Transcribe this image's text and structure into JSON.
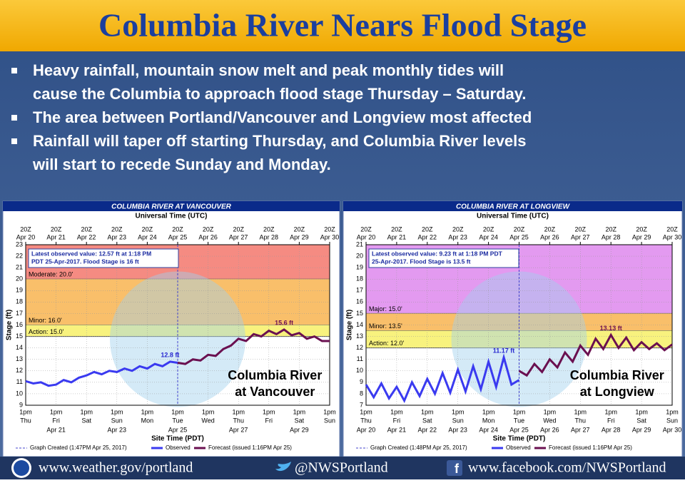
{
  "title": "Columbia River Nears Flood Stage",
  "bullets": [
    [
      "Heavy rainfall, mountain snow melt and peak monthly tides will",
      "cause the Columbia to approach flood stage Thursday – Saturday."
    ],
    [
      "The area between Portland/Vancouver and Longview most affected"
    ],
    [
      "Rainfall will taper off starting Thursday, and Columbia River levels",
      "will start to recede Sunday and Monday."
    ]
  ],
  "footer": [
    "www.weather.gov/portland",
    "@NWSPortland",
    "www.facebook.com/NWSPortland"
  ],
  "chart_data": [
    {
      "type": "line",
      "title": "COLUMBIA RIVER AT VANCOUVER",
      "top_axis_label": "Universal Time (UTC)",
      "xlabel": "Site Time (PDT)",
      "ylabel": "Stage (ft)",
      "overlay": [
        "Columbia River",
        "at Vancouver"
      ],
      "annotation": [
        "Latest observed value: 12.57 ft at 1:18 PM",
        "PDT 25-Apr-2017.  Flood Stage is 16 ft"
      ],
      "created": "Graph Created (1:47PM Apr 25, 2017)",
      "ylim": [
        9,
        23
      ],
      "yticks": [
        9,
        10,
        11,
        12,
        13,
        14,
        15,
        16,
        17,
        18,
        19,
        20,
        21,
        22,
        23
      ],
      "xlim": [
        0,
        10
      ],
      "xticks": [
        {
          "value": 0,
          "label": "1pm",
          "day": "Thu"
        },
        {
          "value": 1,
          "label": "1pm",
          "day": "Fri",
          "date": "Apr 21"
        },
        {
          "value": 2,
          "label": "1pm",
          "day": "Sat"
        },
        {
          "value": 3,
          "label": "1pm",
          "day": "Sun",
          "date": "Apr 23"
        },
        {
          "value": 4,
          "label": "1pm",
          "day": "Mon"
        },
        {
          "value": 5,
          "label": "1pm",
          "day": "Tue",
          "date": "Apr 25"
        },
        {
          "value": 6,
          "label": "1pm",
          "day": "Wed"
        },
        {
          "value": 7,
          "label": "1pm",
          "day": "Thu",
          "date": "Apr 27"
        },
        {
          "value": 8,
          "label": "1pm",
          "day": "Fri"
        },
        {
          "value": 9,
          "label": "1pm",
          "day": "Sat",
          "date": "Apr 29"
        },
        {
          "value": 10,
          "label": "1pm",
          "day": "Sun"
        }
      ],
      "top_ticks": [
        {
          "value": 0,
          "label": "20Z",
          "date": "Apr 20"
        },
        {
          "value": 1,
          "label": "20Z",
          "date": "Apr 21"
        },
        {
          "value": 2,
          "label": "20Z",
          "date": "Apr 22"
        },
        {
          "value": 3,
          "label": "20Z",
          "date": "Apr 23"
        },
        {
          "value": 4,
          "label": "20Z",
          "date": "Apr 24"
        },
        {
          "value": 5,
          "label": "20Z",
          "date": "Apr 25"
        },
        {
          "value": 6,
          "label": "20Z",
          "date": "Apr 26"
        },
        {
          "value": 7,
          "label": "20Z",
          "date": "Apr 27"
        },
        {
          "value": 8,
          "label": "20Z",
          "date": "Apr 28"
        },
        {
          "value": 9,
          "label": "20Z",
          "date": "Apr 29"
        },
        {
          "value": 10,
          "label": "20Z",
          "date": "Apr 30"
        }
      ],
      "thresholds": [
        {
          "label": "Moderate: 20.0'",
          "value": 20,
          "color": "#f58b82"
        },
        {
          "label": "Minor: 16.0'",
          "value": 16,
          "color": "#f9bf6a"
        },
        {
          "label": "Action: 15.0'",
          "value": 15,
          "color": "#f8f27e"
        }
      ],
      "series": [
        {
          "name": "Observed",
          "color": "#3a3af0",
          "x": [
            0,
            0.25,
            0.5,
            0.75,
            1,
            1.25,
            1.5,
            1.75,
            2,
            2.25,
            2.5,
            2.75,
            3,
            3.25,
            3.5,
            3.75,
            4,
            4.25,
            4.5,
            4.75,
            5
          ],
          "values": [
            11.1,
            10.9,
            11.0,
            10.7,
            10.8,
            11.2,
            11.0,
            11.4,
            11.6,
            11.9,
            11.7,
            12.0,
            11.9,
            12.2,
            12.0,
            12.4,
            12.2,
            12.6,
            12.4,
            12.8,
            12.7
          ],
          "value_labels": [
            null,
            null,
            null,
            null,
            null,
            null,
            null,
            null,
            null,
            null,
            null,
            null,
            null,
            null,
            null,
            null,
            null,
            null,
            null,
            "12.8 ft",
            null
          ]
        },
        {
          "name": "Forecast (issued 1:16PM Apr 25)",
          "color": "#6a1050",
          "x": [
            5,
            5.25,
            5.5,
            5.75,
            6,
            6.25,
            6.5,
            6.75,
            7,
            7.25,
            7.5,
            7.75,
            8,
            8.25,
            8.5,
            8.75,
            9,
            9.25,
            9.5,
            9.75,
            10
          ],
          "values": [
            12.7,
            12.6,
            13.0,
            12.9,
            13.4,
            13.3,
            13.9,
            14.2,
            14.8,
            14.6,
            15.2,
            15.0,
            15.5,
            15.2,
            15.6,
            15.1,
            15.3,
            14.8,
            15.0,
            14.6,
            14.6
          ],
          "value_labels": [
            null,
            null,
            null,
            null,
            null,
            null,
            null,
            null,
            null,
            null,
            null,
            null,
            null,
            null,
            "15.6 ft",
            null,
            null,
            null,
            null,
            null,
            null
          ]
        }
      ]
    },
    {
      "type": "line",
      "title": "COLUMBIA RIVER AT LONGVIEW",
      "top_axis_label": "Universal Time (UTC)",
      "xlabel": "Site Time (PDT)",
      "ylabel": "Stage (ft)",
      "overlay": [
        "Columbia River",
        "at Longview"
      ],
      "annotation": [
        "Latest observed value: 9.23 ft at 1:18 PM PDT",
        "25-Apr-2017.  Flood Stage is 13.5 ft"
      ],
      "created": "Graph Created (1:48PM Apr 25, 2017)",
      "ylim": [
        7,
        21
      ],
      "yticks": [
        7,
        8,
        9,
        10,
        11,
        12,
        13,
        14,
        15,
        16,
        17,
        18,
        19,
        20,
        21
      ],
      "xlim": [
        0,
        10
      ],
      "xticks": [
        {
          "value": 0,
          "label": "1pm",
          "day": "Thu",
          "date": "Apr 20"
        },
        {
          "value": 1,
          "label": "1pm",
          "day": "Fri",
          "date": "Apr 21"
        },
        {
          "value": 2,
          "label": "1pm",
          "day": "Sat",
          "date": "Apr 22"
        },
        {
          "value": 3,
          "label": "1pm",
          "day": "Sun",
          "date": "Apr 23"
        },
        {
          "value": 4,
          "label": "1pm",
          "day": "Mon",
          "date": "Apr 24"
        },
        {
          "value": 5,
          "label": "1pm",
          "day": "Tue",
          "date": "Apr 25"
        },
        {
          "value": 6,
          "label": "1pm",
          "day": "Wed",
          "date": "Apr 26"
        },
        {
          "value": 7,
          "label": "1pm",
          "day": "Thu",
          "date": "Apr 27"
        },
        {
          "value": 8,
          "label": "1pm",
          "day": "Fri",
          "date": "Apr 28"
        },
        {
          "value": 9,
          "label": "1pm",
          "day": "Sat",
          "date": "Apr 29"
        },
        {
          "value": 10,
          "label": "1pm",
          "day": "Sun",
          "date": "Apr 30"
        }
      ],
      "top_ticks": [
        {
          "value": 0,
          "label": "20Z",
          "date": "Apr 20"
        },
        {
          "value": 1,
          "label": "20Z",
          "date": "Apr 21"
        },
        {
          "value": 2,
          "label": "20Z",
          "date": "Apr 22"
        },
        {
          "value": 3,
          "label": "20Z",
          "date": "Apr 23"
        },
        {
          "value": 4,
          "label": "20Z",
          "date": "Apr 24"
        },
        {
          "value": 5,
          "label": "20Z",
          "date": "Apr 25"
        },
        {
          "value": 6,
          "label": "20Z",
          "date": "Apr 26"
        },
        {
          "value": 7,
          "label": "20Z",
          "date": "Apr 27"
        },
        {
          "value": 8,
          "label": "20Z",
          "date": "Apr 28"
        },
        {
          "value": 9,
          "label": "20Z",
          "date": "Apr 29"
        },
        {
          "value": 10,
          "label": "20Z",
          "date": "Apr 30"
        }
      ],
      "thresholds": [
        {
          "label": "Major: 15.0'",
          "value": 15,
          "color": "#e39af0"
        },
        {
          "label": "Minor: 13.5'",
          "value": 13.5,
          "color": "#f9bf6a"
        },
        {
          "label": "Action: 12.0'",
          "value": 12,
          "color": "#f8f27e"
        }
      ],
      "series": [
        {
          "name": "Observed",
          "color": "#3a3af0",
          "x": [
            0,
            0.25,
            0.5,
            0.75,
            1,
            1.25,
            1.5,
            1.75,
            2,
            2.25,
            2.5,
            2.75,
            3,
            3.25,
            3.5,
            3.75,
            4,
            4.25,
            4.5,
            4.75,
            5
          ],
          "values": [
            8.8,
            7.7,
            8.9,
            7.6,
            8.6,
            7.4,
            9.0,
            7.8,
            9.3,
            8.0,
            9.8,
            8.1,
            10.1,
            8.2,
            10.4,
            8.4,
            10.8,
            8.6,
            11.17,
            8.8,
            9.2
          ],
          "value_labels": [
            null,
            null,
            null,
            null,
            null,
            null,
            null,
            null,
            null,
            null,
            null,
            null,
            null,
            null,
            null,
            null,
            null,
            null,
            "11.17 ft",
            null,
            null
          ]
        },
        {
          "name": "Forecast (issued 1:16PM Apr 25)",
          "color": "#6a1050",
          "x": [
            5,
            5.25,
            5.5,
            5.75,
            6,
            6.25,
            6.5,
            6.75,
            7,
            7.25,
            7.5,
            7.75,
            8,
            8.25,
            8.5,
            8.75,
            9,
            9.25,
            9.5,
            9.75,
            10
          ],
          "values": [
            10.0,
            9.6,
            10.6,
            9.9,
            11.0,
            10.3,
            11.6,
            10.8,
            12.2,
            11.4,
            12.8,
            11.9,
            13.13,
            12.0,
            12.9,
            11.8,
            12.5,
            11.9,
            12.4,
            11.8,
            12.3
          ],
          "value_labels": [
            null,
            null,
            null,
            null,
            null,
            null,
            null,
            null,
            null,
            null,
            null,
            null,
            "13.13 ft",
            null,
            null,
            null,
            null,
            null,
            null,
            null,
            null
          ]
        }
      ]
    }
  ]
}
